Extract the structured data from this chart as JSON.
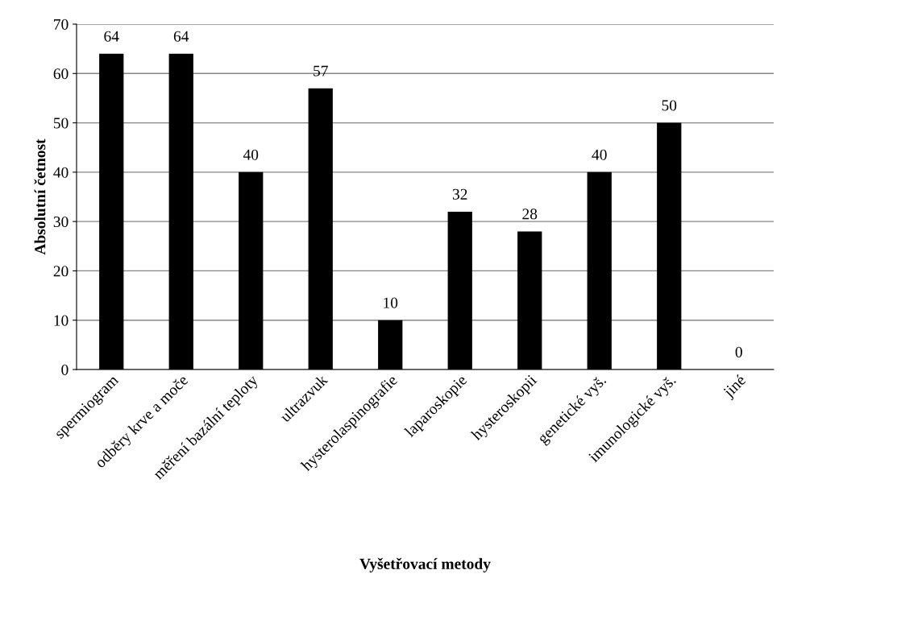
{
  "chart_data": {
    "type": "bar",
    "xlabel": "Vyšetřovací metody",
    "ylabel": "Absolutní četnost",
    "categories": [
      "spermiogram",
      "odběry krve a moče",
      "měření bazální teploty",
      "ultrazvuk",
      "hysterolaspinografie",
      "laparoskopie",
      "hysteroskopii",
      "genetické vyš.",
      "imunologické vyš.",
      "jiné"
    ],
    "values": [
      64,
      64,
      40,
      57,
      10,
      32,
      28,
      40,
      50,
      0
    ],
    "color": "#000000",
    "ylim": [
      0,
      70
    ],
    "yticks": [
      0,
      10,
      20,
      30,
      40,
      50,
      60,
      70
    ],
    "grid": "y",
    "data_labels": true
  }
}
